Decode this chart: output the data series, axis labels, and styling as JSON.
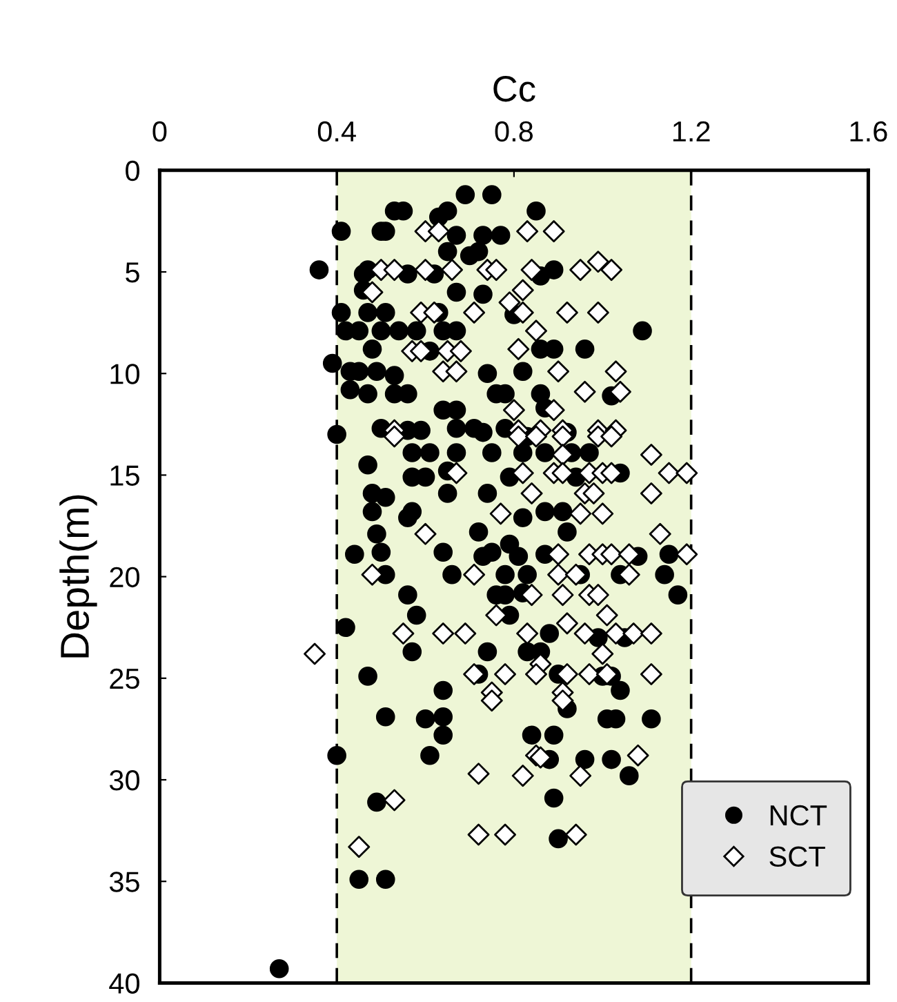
{
  "chart_data": {
    "type": "scatter",
    "xlabel": "Cc",
    "ylabel": "Depth(m)",
    "xlim": [
      0,
      1.6
    ],
    "xticks": [
      0,
      0.4,
      0.8,
      1.2,
      1.6
    ],
    "ylim": [
      40,
      0
    ],
    "yticks": [
      0,
      5,
      10,
      15,
      20,
      25,
      30,
      35,
      40
    ],
    "grid": false,
    "legend": "bottom right",
    "bands": [
      {
        "axis": "x",
        "from": 0.4,
        "to": 1.2,
        "color": "#eef6d6"
      }
    ],
    "ref_lines": [
      {
        "axis": "x",
        "value": 0.4,
        "color": "#000000",
        "line_style": "dashed"
      },
      {
        "axis": "x",
        "value": 1.2,
        "color": "#000000",
        "line_style": "dashed"
      }
    ],
    "series": [
      {
        "name": "NCT",
        "color": "#000000",
        "marker": "circle",
        "x": [
          0.69,
          0.75,
          0.53,
          0.55,
          0.63,
          0.65,
          0.85,
          0.41,
          0.5,
          0.51,
          0.67,
          0.73,
          0.77,
          0.65,
          0.7,
          0.72,
          0.36,
          0.46,
          0.47,
          0.56,
          0.62,
          0.86,
          0.89,
          0.46,
          0.67,
          0.73,
          0.41,
          0.47,
          0.51,
          0.63,
          0.8,
          0.42,
          0.45,
          0.5,
          0.54,
          0.58,
          0.64,
          0.67,
          1.09,
          0.48,
          0.61,
          0.86,
          0.89,
          0.96,
          0.39,
          0.43,
          0.45,
          0.49,
          0.53,
          0.74,
          0.82,
          0.43,
          0.47,
          0.53,
          0.56,
          0.76,
          0.78,
          0.86,
          1.02,
          0.64,
          0.67,
          0.87,
          0.4,
          0.5,
          0.56,
          0.59,
          0.67,
          0.71,
          0.73,
          0.78,
          0.92,
          0.83,
          0.47,
          0.57,
          0.61,
          0.67,
          0.75,
          0.82,
          0.87,
          0.93,
          0.97,
          0.57,
          0.6,
          0.65,
          0.79,
          0.94,
          1.04,
          0.48,
          0.51,
          0.65,
          0.74,
          0.48,
          0.56,
          0.57,
          0.82,
          0.87,
          0.91,
          0.49,
          0.72,
          0.92,
          0.44,
          0.5,
          0.64,
          0.73,
          0.75,
          0.79,
          0.81,
          0.87,
          1.08,
          1.15,
          0.51,
          0.66,
          0.78,
          0.83,
          0.95,
          1.04,
          1.14,
          0.56,
          0.76,
          0.78,
          0.82,
          1.17,
          0.58,
          0.79,
          0.42,
          0.88,
          0.99,
          1.05,
          0.57,
          0.74,
          0.83,
          0.86,
          0.47,
          0.72,
          0.9,
          1.0,
          1.02,
          0.64,
          1.04,
          0.51,
          0.6,
          0.64,
          0.64,
          0.84,
          0.89,
          0.92,
          1.01,
          1.03,
          1.11,
          0.4,
          0.61,
          0.88,
          0.96,
          1.02,
          1.06,
          0.49,
          0.89,
          0.9,
          0.45,
          0.51,
          0.27
        ],
        "values": [
          1.2,
          1.2,
          2.0,
          2.0,
          2.3,
          2.0,
          2.0,
          3.0,
          3.0,
          3.0,
          3.2,
          3.2,
          3.2,
          4.0,
          4.2,
          4.0,
          4.9,
          5.1,
          4.9,
          5.1,
          5.1,
          5.2,
          4.9,
          5.9,
          6.0,
          6.1,
          7.0,
          7.0,
          7.0,
          7.0,
          7.1,
          7.9,
          7.9,
          7.9,
          7.9,
          7.9,
          7.9,
          7.9,
          7.9,
          8.8,
          8.9,
          8.8,
          8.8,
          8.8,
          9.5,
          9.9,
          9.9,
          9.9,
          10.1,
          10.0,
          9.9,
          10.8,
          11.0,
          11.0,
          11.0,
          11.0,
          11.0,
          11.0,
          11.1,
          11.8,
          11.8,
          11.7,
          13.0,
          12.7,
          12.8,
          12.8,
          12.7,
          12.7,
          12.9,
          12.7,
          12.9,
          13.1,
          14.5,
          13.9,
          13.9,
          13.9,
          13.9,
          13.9,
          13.9,
          13.9,
          13.9,
          15.1,
          15.1,
          14.8,
          15.1,
          15.1,
          14.9,
          15.9,
          16.1,
          15.9,
          15.9,
          16.8,
          17.1,
          16.8,
          17.1,
          16.8,
          16.8,
          17.9,
          17.8,
          17.8,
          18.9,
          18.8,
          18.8,
          19.0,
          18.8,
          18.4,
          19.0,
          18.9,
          19.0,
          18.9,
          19.9,
          19.9,
          19.9,
          19.9,
          19.9,
          19.9,
          19.9,
          20.9,
          20.9,
          20.9,
          20.8,
          20.9,
          21.9,
          21.9,
          22.5,
          22.8,
          23.0,
          23.0,
          23.7,
          23.7,
          23.7,
          23.7,
          24.9,
          24.8,
          24.8,
          24.9,
          24.9,
          25.6,
          25.6,
          26.9,
          27.0,
          26.9,
          27.8,
          27.8,
          27.8,
          26.5,
          27.0,
          27.0,
          27.0,
          28.8,
          28.8,
          29.0,
          29.0,
          29.0,
          29.8,
          31.1,
          30.9,
          32.9,
          34.9,
          34.9,
          39.3
        ]
      },
      {
        "name": "SCT",
        "color": "#ffffff",
        "marker": "diamond",
        "x": [
          0.6,
          0.63,
          0.83,
          0.89,
          0.5,
          0.53,
          0.6,
          0.66,
          0.74,
          0.76,
          0.84,
          0.95,
          0.99,
          1.02,
          0.48,
          0.82,
          0.79,
          0.82,
          0.59,
          0.62,
          0.71,
          0.92,
          0.99,
          0.85,
          0.57,
          0.59,
          0.65,
          0.68,
          0.81,
          0.64,
          0.67,
          0.9,
          1.03,
          0.96,
          1.04,
          0.8,
          0.89,
          0.53,
          0.81,
          0.86,
          0.91,
          0.99,
          1.03,
          0.53,
          0.81,
          0.85,
          0.91,
          0.99,
          1.02,
          1.11,
          0.91,
          0.67,
          0.82,
          0.89,
          0.91,
          0.97,
          1.0,
          1.02,
          1.15,
          1.19,
          0.84,
          0.96,
          0.98,
          1.11,
          0.77,
          0.95,
          1.0,
          0.6,
          1.13,
          0.9,
          0.97,
          1.0,
          1.02,
          1.06,
          1.19,
          0.48,
          0.71,
          0.9,
          0.94,
          1.06,
          0.84,
          0.91,
          0.97,
          0.99,
          0.76,
          1.01,
          0.55,
          0.64,
          0.69,
          0.83,
          0.92,
          0.96,
          1.03,
          1.07,
          1.11,
          0.35,
          0.86,
          1.0,
          0.71,
          0.78,
          0.85,
          0.92,
          0.97,
          1.01,
          1.11,
          0.75,
          0.91,
          0.75,
          0.91,
          0.85,
          0.86,
          1.08,
          0.72,
          0.82,
          0.95,
          0.53,
          0.72,
          0.78,
          0.94,
          0.45
        ],
        "values": [
          3.0,
          3.0,
          3.0,
          3.0,
          4.9,
          4.9,
          4.9,
          4.9,
          4.9,
          4.9,
          4.9,
          4.9,
          4.5,
          4.9,
          6.0,
          5.9,
          6.5,
          7.0,
          7.0,
          7.0,
          7.0,
          7.0,
          7.0,
          7.9,
          8.9,
          8.9,
          8.9,
          8.9,
          8.8,
          9.9,
          9.9,
          9.9,
          9.9,
          10.9,
          10.9,
          11.8,
          11.8,
          12.8,
          12.8,
          12.8,
          12.8,
          12.8,
          12.8,
          13.1,
          13.1,
          13.1,
          13.1,
          13.1,
          13.1,
          14.0,
          14.0,
          14.9,
          14.9,
          14.9,
          14.9,
          14.9,
          14.9,
          14.9,
          14.9,
          14.9,
          15.9,
          15.9,
          15.9,
          15.9,
          16.9,
          16.9,
          16.9,
          17.9,
          17.9,
          18.9,
          18.9,
          18.9,
          18.9,
          18.9,
          18.9,
          19.9,
          19.9,
          19.9,
          19.9,
          19.9,
          20.9,
          20.9,
          20.9,
          20.9,
          21.9,
          21.9,
          22.8,
          22.8,
          22.8,
          22.8,
          22.3,
          22.8,
          22.8,
          22.8,
          22.8,
          23.8,
          24.3,
          23.8,
          24.8,
          24.8,
          24.8,
          24.8,
          24.8,
          24.8,
          24.8,
          25.7,
          25.7,
          26.1,
          26.1,
          28.8,
          28.9,
          28.8,
          29.7,
          29.8,
          29.8,
          31.0,
          32.7,
          32.7,
          32.7,
          33.3
        ]
      }
    ]
  }
}
